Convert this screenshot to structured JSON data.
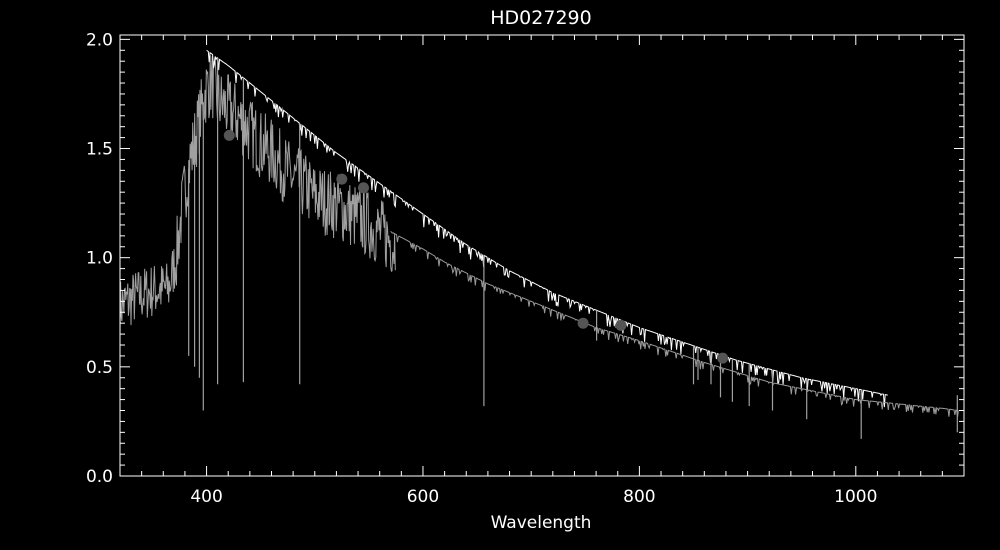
{
  "chart_data": {
    "type": "line",
    "title": "HD027290",
    "xlabel": "Wavelength",
    "ylabel": "",
    "xlim": [
      320,
      1100
    ],
    "ylim": [
      0.0,
      2.02
    ],
    "x_ticks": [
      400,
      600,
      800,
      1000
    ],
    "x_tick_labels": [
      "400",
      "600",
      "800",
      "1000"
    ],
    "y_ticks": [
      0.0,
      0.5,
      1.0,
      1.5,
      2.0
    ],
    "y_tick_labels": [
      "0.0",
      "0.5",
      "1.0",
      "1.5",
      "2.0"
    ],
    "grid": false,
    "legend": "none",
    "colors": {
      "background": "#000000",
      "axes": "#ffffff",
      "observed_spectrum": "#a0a0a0",
      "model_spectrum": "#ffffff",
      "lower_spectrum": "#9a9a9a",
      "photometry_points": "#555555"
    },
    "series": [
      {
        "style": "gray-noisy",
        "x": [
          320,
          335,
          350,
          365,
          372,
          378,
          385,
          392,
          400,
          405,
          410,
          420,
          430,
          440,
          450,
          460,
          470,
          480,
          490,
          500,
          520,
          540,
          560,
          575
        ],
        "y": [
          0.78,
          0.82,
          0.85,
          0.86,
          1.0,
          1.25,
          1.45,
          1.6,
          1.78,
          1.8,
          1.72,
          1.68,
          1.64,
          1.58,
          1.52,
          1.48,
          1.42,
          1.36,
          1.33,
          1.28,
          1.24,
          1.18,
          1.12,
          1.06
        ]
      },
      {
        "style": "white-line",
        "x": [
          400,
          420,
          440,
          460,
          480,
          490,
          500,
          520,
          540,
          560,
          580,
          600,
          620,
          640,
          660,
          680,
          700,
          720,
          740,
          760,
          780,
          800,
          830,
          860,
          890,
          920,
          950,
          980,
          1010,
          1030
        ],
        "y": [
          1.95,
          1.88,
          1.8,
          1.72,
          1.64,
          1.6,
          1.56,
          1.48,
          1.41,
          1.34,
          1.27,
          1.2,
          1.13,
          1.06,
          1.0,
          0.94,
          0.89,
          0.84,
          0.8,
          0.76,
          0.72,
          0.68,
          0.63,
          0.58,
          0.53,
          0.49,
          0.45,
          0.42,
          0.39,
          0.37
        ]
      },
      {
        "style": "gray-line",
        "x": [
          570,
          600,
          620,
          640,
          660,
          680,
          700,
          720,
          740,
          760,
          780,
          800,
          830,
          860,
          880,
          900,
          920,
          950,
          980,
          1000,
          1020,
          1040,
          1060,
          1080,
          1095
        ],
        "y": [
          1.12,
          1.04,
          0.98,
          0.93,
          0.88,
          0.84,
          0.8,
          0.76,
          0.72,
          0.68,
          0.65,
          0.62,
          0.57,
          0.52,
          0.49,
          0.46,
          0.43,
          0.4,
          0.37,
          0.35,
          0.34,
          0.33,
          0.32,
          0.31,
          0.3
        ]
      }
    ],
    "absorption_lines": [
      {
        "x": 383.5,
        "depth_to": 0.55
      },
      {
        "x": 388.9,
        "depth_to": 0.5
      },
      {
        "x": 393.4,
        "depth_to": 0.45
      },
      {
        "x": 397.0,
        "depth_to": 0.3
      },
      {
        "x": 410.2,
        "depth_to": 0.42
      },
      {
        "x": 434.0,
        "depth_to": 0.43
      },
      {
        "x": 486.1,
        "depth_to": 0.42
      },
      {
        "x": 656.3,
        "depth_to": 0.32
      },
      {
        "x": 760.5,
        "depth_to": 0.62
      },
      {
        "x": 850.0,
        "depth_to": 0.42
      },
      {
        "x": 854.2,
        "depth_to": 0.44
      },
      {
        "x": 866.2,
        "depth_to": 0.42
      },
      {
        "x": 875.0,
        "depth_to": 0.36
      },
      {
        "x": 886.0,
        "depth_to": 0.34
      },
      {
        "x": 901.5,
        "depth_to": 0.32
      },
      {
        "x": 923.0,
        "depth_to": 0.3
      },
      {
        "x": 954.6,
        "depth_to": 0.26
      },
      {
        "x": 1005.0,
        "depth_to": 0.17
      },
      {
        "x": 1093.8,
        "depth_to": 0.2
      }
    ],
    "photometry_points": [
      {
        "x": 421,
        "y": 1.56
      },
      {
        "x": 525,
        "y": 1.36
      },
      {
        "x": 545,
        "y": 1.32
      },
      {
        "x": 748,
        "y": 0.7
      },
      {
        "x": 783,
        "y": 0.69
      },
      {
        "x": 877,
        "y": 0.54
      }
    ]
  }
}
